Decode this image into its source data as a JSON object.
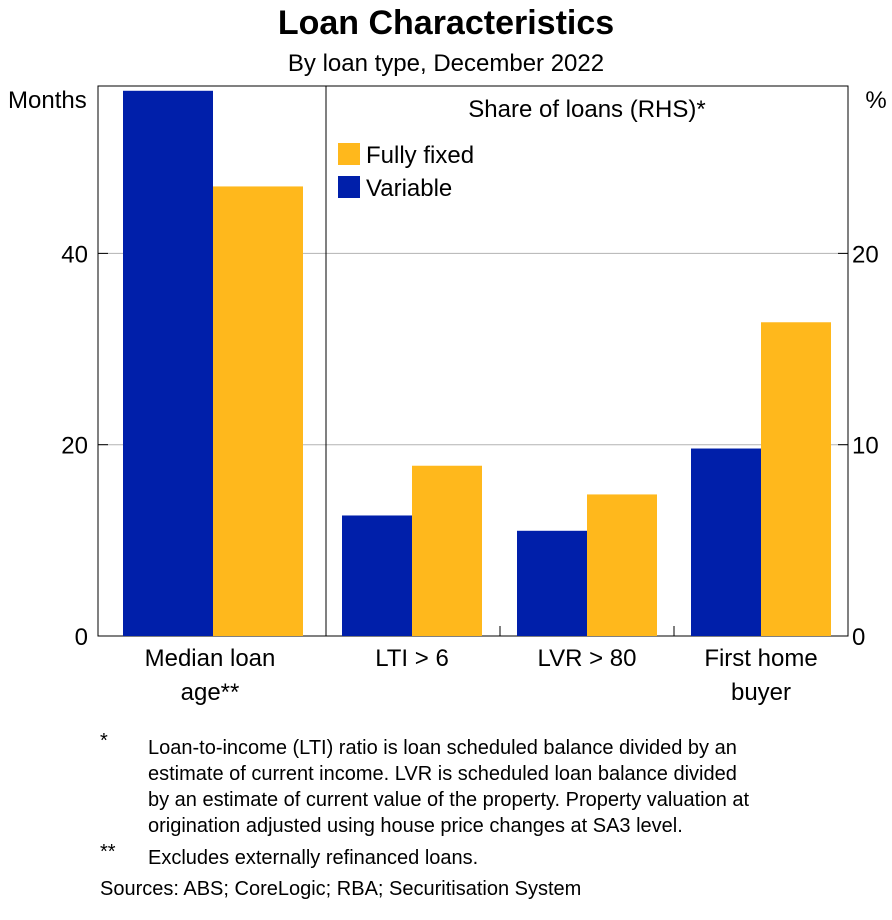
{
  "chart_data": {
    "type": "bar",
    "title": "Loan Characteristics",
    "subtitle": "By loan type, December 2022",
    "left_axis": {
      "unit_label": "Months",
      "ticks": [
        0,
        20,
        40
      ],
      "ylim": [
        0,
        57.5
      ]
    },
    "right_axis": {
      "unit_label": "%",
      "ticks": [
        0,
        10,
        20
      ],
      "ylim": [
        0,
        28.75
      ]
    },
    "panel_label": "Share of loans (RHS)*",
    "legend": [
      {
        "name": "Fully fixed",
        "color": "#FFB81C"
      },
      {
        "name": "Variable",
        "color": "#001FAA"
      }
    ],
    "left_panel": {
      "categories": [
        "Median loan age**"
      ],
      "category_lines": [
        [
          "Median loan",
          "age**"
        ]
      ],
      "series": [
        {
          "name": "Variable",
          "color": "#001FAA",
          "values": [
            57
          ]
        },
        {
          "name": "Fully fixed",
          "color": "#FFB81C",
          "values": [
            47
          ]
        }
      ]
    },
    "right_panel": {
      "categories": [
        "LTI > 6",
        "LVR > 80",
        "First home buyer"
      ],
      "category_lines": [
        [
          "LTI > 6"
        ],
        [
          "LVR > 80"
        ],
        [
          "First home",
          "buyer"
        ]
      ],
      "series": [
        {
          "name": "Variable",
          "color": "#001FAA",
          "values": [
            6.3,
            5.5,
            9.8
          ]
        },
        {
          "name": "Fully fixed",
          "color": "#FFB81C",
          "values": [
            8.9,
            7.4,
            16.4
          ]
        }
      ]
    }
  },
  "notes": [
    {
      "mark": "*",
      "lines": [
        "Loan-to-income (LTI) ratio is loan scheduled balance divided by an",
        "estimate of current income. LVR is scheduled loan balance divided",
        "by an estimate of current value of the property. Property valuation at",
        "origination adjusted using house price changes at SA3 level."
      ]
    },
    {
      "mark": "**",
      "lines": [
        "Excludes externally refinanced loans."
      ]
    }
  ],
  "sources": "Sources: ABS; CoreLogic; RBA; Securitisation System"
}
